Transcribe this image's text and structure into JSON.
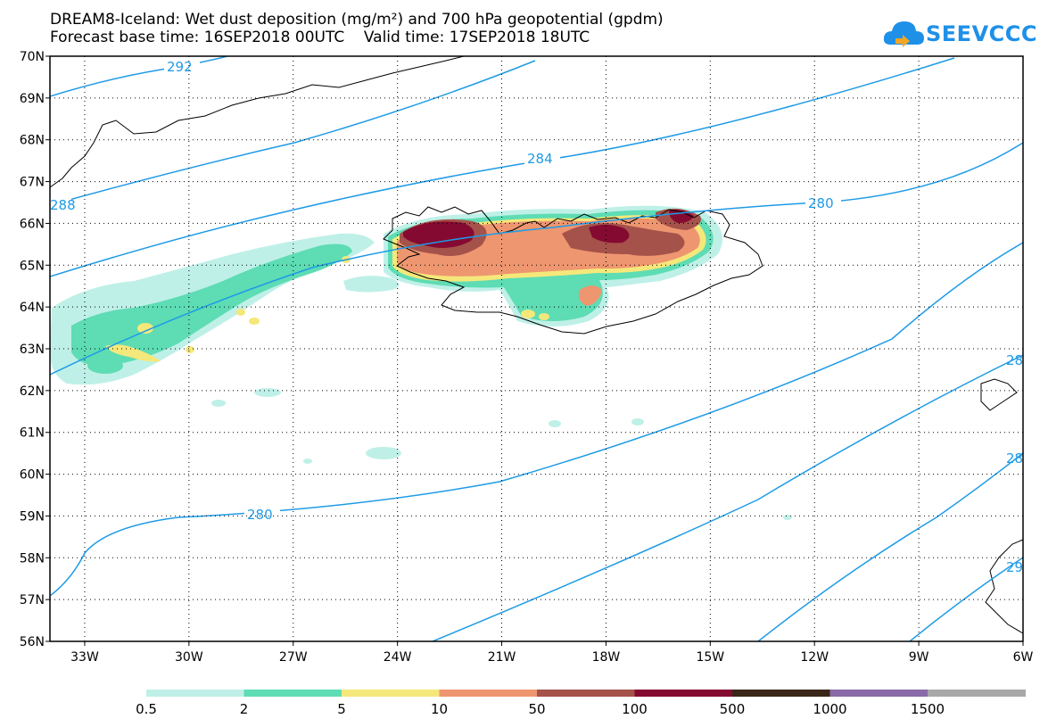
{
  "header": {
    "title_line1": "DREAM8-Iceland: Wet dust deposition (mg/m²) and 700 hPa geopotential (gpdm)",
    "title_line2": "Forecast base time: 16SEP2018 00UTC    Valid time: 17SEP2018 18UTC"
  },
  "logo": {
    "text": "SEEVCCC",
    "icon": "cloud-logo-icon",
    "color": "#1e90e8"
  },
  "map": {
    "lon_range": [
      -34,
      -6
    ],
    "lat_range": [
      56,
      70
    ],
    "lon_ticks": [
      "33W",
      "30W",
      "27W",
      "24W",
      "21W",
      "18W",
      "15W",
      "12W",
      "9W",
      "6W"
    ],
    "lat_ticks": [
      "70N",
      "69N",
      "68N",
      "67N",
      "66N",
      "65N",
      "64N",
      "63N",
      "62N",
      "61N",
      "60N",
      "59N",
      "58N",
      "57N",
      "56N"
    ],
    "grid": "dotted",
    "contour_color": "#1e9be6",
    "contour_labels": [
      "292",
      "288",
      "284",
      "280",
      "280",
      "28",
      "28",
      "29"
    ]
  },
  "legend": {
    "labels": [
      "0.5",
      "2",
      "5",
      "10",
      "50",
      "100",
      "500",
      "1000",
      "1500"
    ],
    "colors": [
      "#bff0e8",
      "#5edcb4",
      "#f5e87a",
      "#ee9670",
      "#a5524a",
      "#850a32",
      "#3a2618",
      "#8a6aa8",
      "#a8a8a8"
    ]
  }
}
